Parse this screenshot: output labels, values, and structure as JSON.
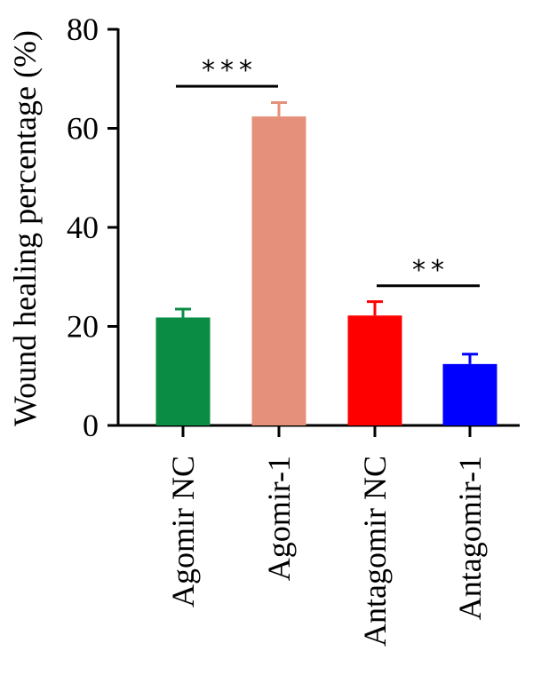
{
  "chart_data": {
    "type": "bar",
    "title": "",
    "xlabel": "",
    "ylabel": "Wound healing percentage (%)",
    "ylim": [
      0,
      80
    ],
    "yticks": [
      0,
      20,
      40,
      60,
      80
    ],
    "categories": [
      "Agomir NC",
      "Agomir-1",
      "Antagomir NC",
      "Antagomir-1"
    ],
    "values": [
      21.8,
      62.4,
      22.2,
      12.4
    ],
    "errors": [
      1.7,
      2.8,
      2.8,
      2.0
    ],
    "colors": [
      "#0b8c45",
      "#e5907a",
      "#ff0000",
      "#0000ff"
    ],
    "grid": false,
    "legend": "none",
    "significance": [
      {
        "from": 0,
        "to": 1,
        "label": "***",
        "y": 68.5
      },
      {
        "from": 2,
        "to": 3,
        "label": "**",
        "y": 28.2
      }
    ]
  }
}
